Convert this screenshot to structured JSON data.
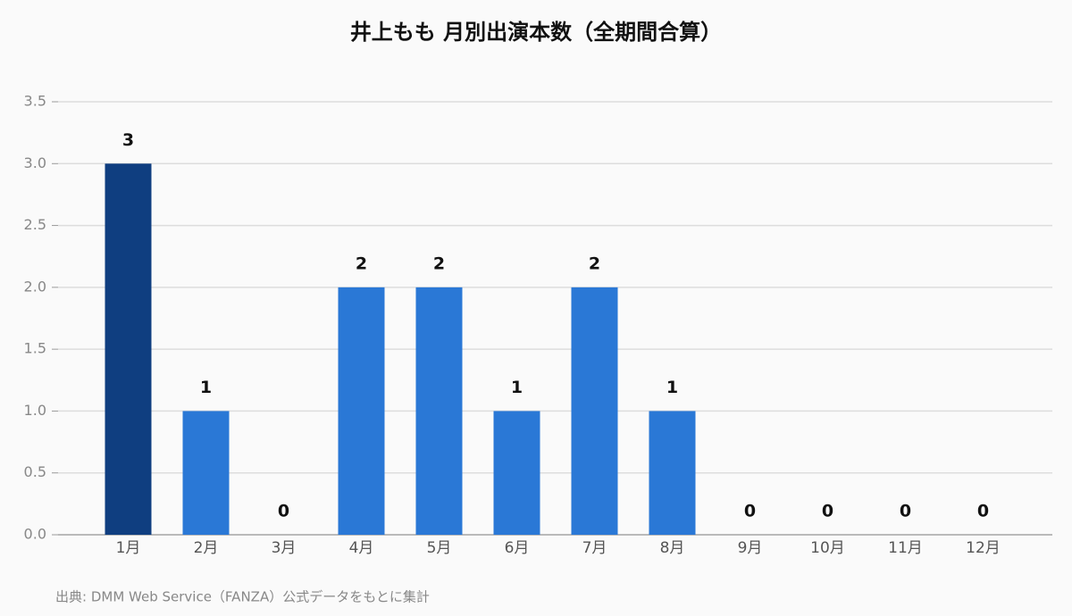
{
  "chart_data": {
    "type": "bar",
    "title": "井上もも 月別出演本数（全期間合算）",
    "categories": [
      "1月",
      "2月",
      "3月",
      "4月",
      "5月",
      "6月",
      "7月",
      "8月",
      "9月",
      "10月",
      "11月",
      "12月"
    ],
    "values": [
      3,
      1,
      0,
      2,
      2,
      1,
      2,
      1,
      0,
      0,
      0,
      0
    ],
    "colors": [
      "#0f3e80",
      "#2a78d6",
      "#2a78d6",
      "#2a78d6",
      "#2a78d6",
      "#2a78d6",
      "#2a78d6",
      "#2a78d6",
      "#2a78d6",
      "#2a78d6",
      "#2a78d6",
      "#2a78d6"
    ],
    "ylim": [
      0,
      3.5
    ],
    "yticks": [
      {
        "value": 0,
        "label": "0.0"
      },
      0.5,
      {
        "value": 1,
        "label": "1.0"
      },
      1.5,
      {
        "value": 2,
        "label": "2.0"
      },
      2.5,
      {
        "value": 3,
        "label": "3.0"
      },
      3.5
    ],
    "grid": true,
    "source": "出典: DMM Web Service（FANZA）公式データをもとに集計"
  }
}
